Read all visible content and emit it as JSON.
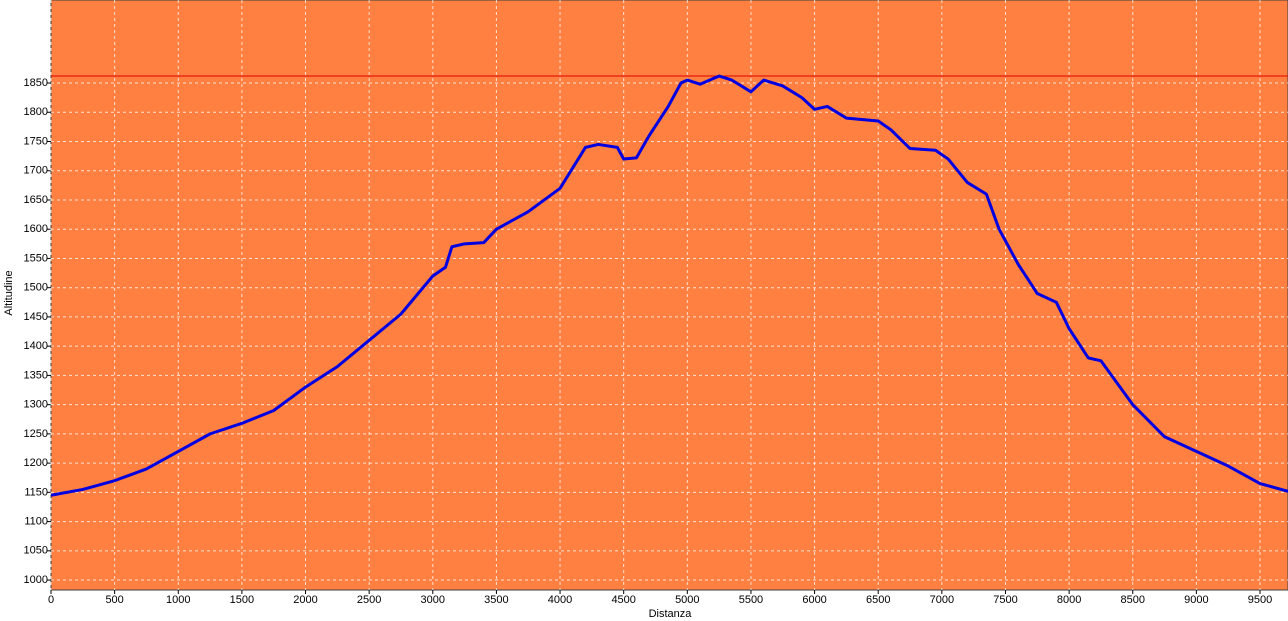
{
  "chart_data": {
    "type": "line",
    "x_label": "Distanza",
    "y_label": "Altitudine",
    "x": [
      0,
      250,
      500,
      750,
      1000,
      1250,
      1500,
      1750,
      2000,
      2250,
      2500,
      2750,
      3000,
      3100,
      3150,
      3250,
      3400,
      3500,
      3750,
      4000,
      4100,
      4200,
      4300,
      4450,
      4500,
      4600,
      4700,
      4850,
      4950,
      5000,
      5100,
      5250,
      5350,
      5500,
      5600,
      5750,
      5900,
      6000,
      6100,
      6250,
      6500,
      6600,
      6750,
      6950,
      7050,
      7200,
      7350,
      7450,
      7600,
      7750,
      7900,
      8000,
      8150,
      8250,
      8500,
      8750,
      9000,
      9250,
      9500,
      9750
    ],
    "values": [
      1145,
      1155,
      1170,
      1190,
      1220,
      1250,
      1268,
      1290,
      1330,
      1365,
      1410,
      1455,
      1520,
      1535,
      1570,
      1575,
      1577,
      1600,
      1630,
      1670,
      1705,
      1740,
      1745,
      1740,
      1720,
      1722,
      1760,
      1810,
      1850,
      1855,
      1848,
      1862,
      1855,
      1835,
      1855,
      1845,
      1825,
      1805,
      1810,
      1790,
      1785,
      1770,
      1738,
      1735,
      1720,
      1680,
      1660,
      1600,
      1540,
      1490,
      1475,
      1430,
      1380,
      1375,
      1300,
      1245,
      1220,
      1195,
      1165,
      1150
    ],
    "color": "#0000e0",
    "background": "#ff8040",
    "reference_line": 1862,
    "reference_color": "#e00000",
    "xlim": [
      0,
      9720
    ],
    "xticks": [
      0,
      500,
      1000,
      1500,
      2000,
      2500,
      3000,
      3500,
      4000,
      4500,
      5000,
      5500,
      6000,
      6500,
      7000,
      7500,
      8000,
      8500,
      9000,
      9500
    ],
    "ylim": [
      983,
      1992
    ],
    "yticks": [
      1000,
      1050,
      1100,
      1150,
      1200,
      1250,
      1300,
      1350,
      1400,
      1450,
      1500,
      1550,
      1600,
      1650,
      1700,
      1750,
      1800,
      1850
    ],
    "grid": true
  }
}
